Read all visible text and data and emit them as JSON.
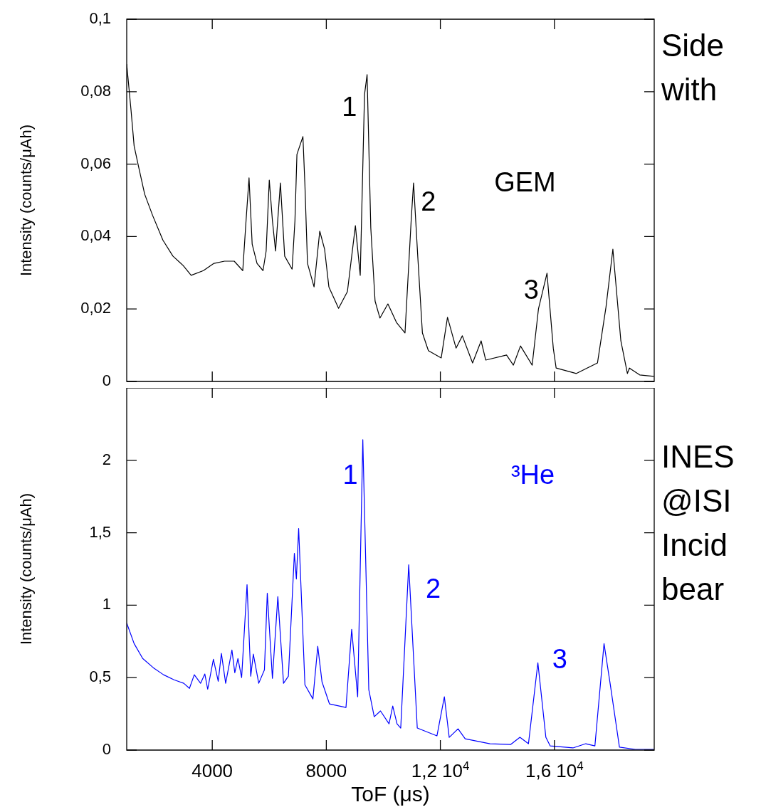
{
  "chart_data": [
    {
      "type": "line",
      "ylabel": "Intensity (counts/μAh)",
      "xlim": [
        1000,
        19500
      ],
      "ylim": [
        0,
        0.1
      ],
      "xticks": [
        {
          "value": 4000,
          "label": null
        },
        {
          "value": 8000,
          "label": null
        },
        {
          "value": 12000,
          "label": null
        },
        {
          "value": 16000,
          "label": null
        }
      ],
      "yticks": [
        0,
        {
          "value": 0.02,
          "label": "0,02"
        },
        {
          "value": 0.04,
          "label": "0,04"
        },
        {
          "value": 0.06,
          "label": "0,06"
        },
        {
          "value": 0.08,
          "label": "0,08"
        },
        {
          "value": 0.1,
          "label": "0,1"
        }
      ],
      "tick_labels": "y",
      "series": [
        {
          "color": "#000000",
          "x": [
            1000,
            1150,
            1260,
            1410,
            1630,
            1910,
            2270,
            2620,
            2980,
            3260,
            3690,
            4060,
            4430,
            4770,
            5070,
            5180,
            5290,
            5400,
            5570,
            5780,
            5890,
            6000,
            6110,
            6220,
            6390,
            6540,
            6800,
            6900,
            6970,
            7180,
            7250,
            7340,
            7570,
            7770,
            7940,
            8090,
            8430,
            8740,
            9020,
            9190,
            9340,
            9430,
            9560,
            9710,
            9880,
            10160,
            10460,
            10760,
            10980,
            11060,
            11210,
            11370,
            11580,
            12030,
            12250,
            12550,
            12770,
            13130,
            13430,
            13590,
            14320,
            14560,
            14810,
            15220,
            15440,
            15740,
            15960,
            16060,
            16770,
            17510,
            17810,
            18050,
            18330,
            18560,
            18630,
            18990,
            19490
          ],
          "values": [
            0.0876,
            0.075,
            0.065,
            0.0595,
            0.0517,
            0.0458,
            0.039,
            0.0346,
            0.032,
            0.0293,
            0.0306,
            0.0326,
            0.0332,
            0.0332,
            0.0306,
            0.0438,
            0.0562,
            0.0379,
            0.0326,
            0.0306,
            0.036,
            0.0556,
            0.0444,
            0.036,
            0.0548,
            0.0346,
            0.031,
            0.0444,
            0.0627,
            0.0676,
            0.0542,
            0.0326,
            0.0261,
            0.0415,
            0.0365,
            0.0261,
            0.0202,
            0.0248,
            0.043,
            0.0293,
            0.0792,
            0.0847,
            0.0424,
            0.0222,
            0.0175,
            0.0214,
            0.0163,
            0.0134,
            0.045,
            0.0548,
            0.0342,
            0.0134,
            0.0085,
            0.0065,
            0.0177,
            0.0092,
            0.0126,
            0.0051,
            0.0112,
            0.0059,
            0.0073,
            0.0045,
            0.0098,
            0.0045,
            0.02,
            0.0299,
            0.0092,
            0.0037,
            0.0022,
            0.0051,
            0.0206,
            0.0365,
            0.0112,
            0.0022,
            0.0037,
            0.0018,
            0.0014
          ]
        }
      ],
      "annotations": [
        "1",
        "2",
        "GEM",
        "3",
        "Side",
        "with"
      ]
    },
    {
      "type": "line",
      "xlabel": "ToF (μs)",
      "ylabel": "Intensity (counts/μAh)",
      "xlim": [
        1000,
        19500
      ],
      "ylim": [
        0,
        2.5
      ],
      "xticks": [
        4000,
        8000,
        {
          "value": 12000,
          "label": "1,2 10$^{4}$"
        },
        {
          "value": 16000,
          "label": "1,6 10$^{4}$"
        }
      ],
      "yticks": [
        0,
        {
          "value": 0.5,
          "label": "0,5"
        },
        1,
        {
          "value": 1.5,
          "label": "1,5"
        },
        2
      ],
      "series": [
        {
          "color": "#0000ff",
          "x": [
            1000,
            1260,
            1560,
            1930,
            2290,
            2660,
            3000,
            3200,
            3370,
            3590,
            3740,
            3840,
            4040,
            4210,
            4320,
            4470,
            4690,
            4790,
            4900,
            5030,
            5220,
            5350,
            5440,
            5630,
            5830,
            5930,
            6110,
            6300,
            6500,
            6670,
            6880,
            6950,
            7030,
            7250,
            7530,
            7700,
            7850,
            8110,
            8690,
            8890,
            9100,
            9280,
            9490,
            9680,
            9900,
            10200,
            10330,
            10480,
            10610,
            10890,
            11190,
            11880,
            12140,
            12310,
            12620,
            12870,
            13740,
            14470,
            14790,
            15090,
            15420,
            15700,
            15850,
            16650,
            17100,
            17420,
            17740,
            17960,
            18280,
            18840,
            19490
          ],
          "values": [
            0.877,
            0.735,
            0.632,
            0.569,
            0.52,
            0.485,
            0.461,
            0.426,
            0.52,
            0.461,
            0.525,
            0.42,
            0.627,
            0.475,
            0.667,
            0.461,
            0.691,
            0.534,
            0.632,
            0.5,
            1.142,
            0.51,
            0.662,
            0.461,
            0.554,
            1.083,
            0.495,
            1.059,
            0.461,
            0.51,
            1.358,
            1.181,
            1.529,
            0.451,
            0.353,
            0.716,
            0.47,
            0.319,
            0.294,
            0.833,
            0.368,
            2.142,
            0.417,
            0.23,
            0.27,
            0.181,
            0.304,
            0.181,
            0.152,
            1.279,
            0.152,
            0.098,
            0.368,
            0.088,
            0.147,
            0.078,
            0.044,
            0.039,
            0.088,
            0.044,
            0.603,
            0.088,
            0.029,
            0.015,
            0.044,
            0.029,
            0.735,
            0.451,
            0.02,
            0.005,
            0.005
          ]
        }
      ],
      "annotations": [
        "1",
        "³He",
        "2",
        "3",
        "INES",
        "@ISI",
        "Incid",
        "bear"
      ]
    }
  ]
}
